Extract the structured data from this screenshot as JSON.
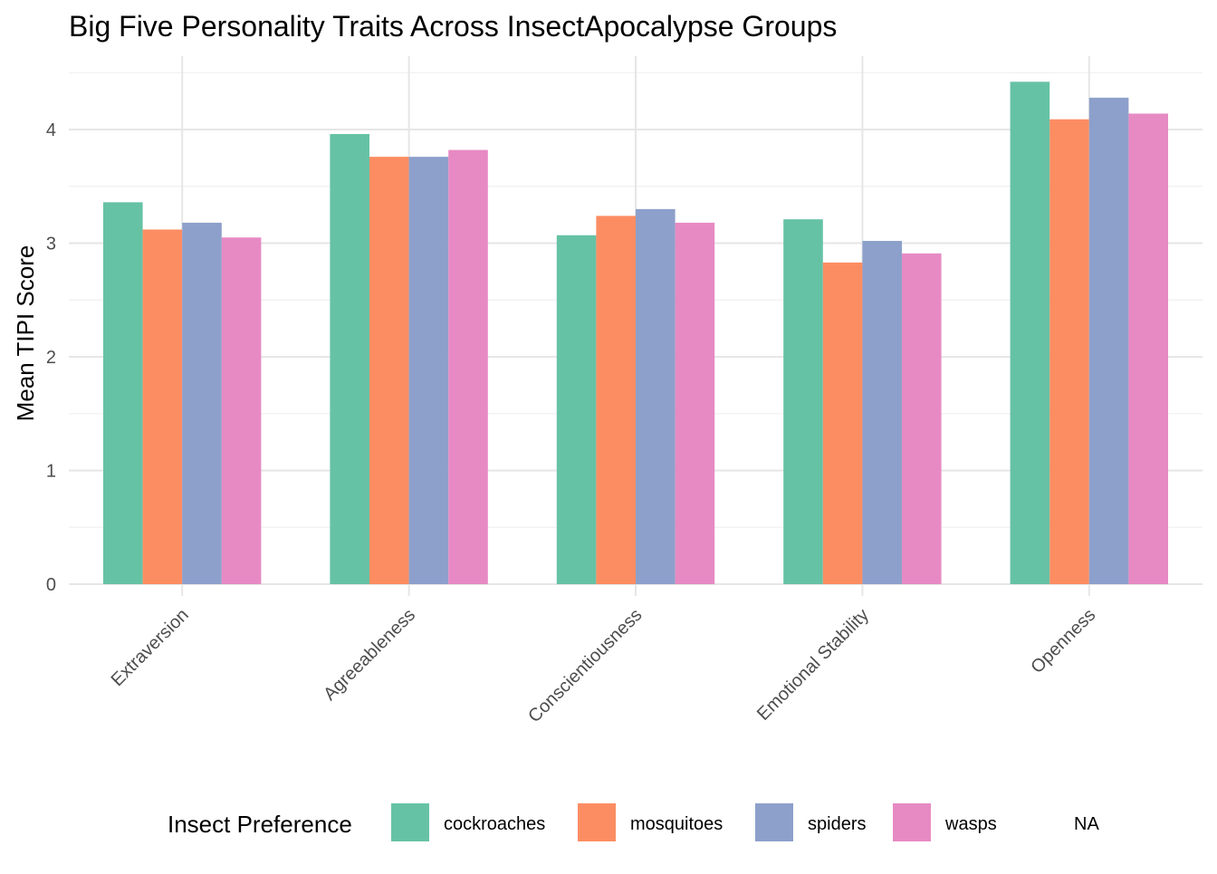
{
  "chart_data": {
    "type": "bar",
    "title": "Big Five Personality Traits Across InsectApocalypse Groups",
    "xlabel": "",
    "ylabel": "Mean TIPI Score",
    "ylim": [
      0,
      4.65
    ],
    "yticks": [
      0,
      1,
      2,
      3,
      4
    ],
    "grid": true,
    "legend_position": "bottom",
    "legend_title": "Insect Preference",
    "categories": [
      "Extraversion",
      "Agreeableness",
      "Conscientiousness",
      "Emotional Stability",
      "Openness"
    ],
    "series": [
      {
        "name": "cockroaches",
        "color": "#66c2a5",
        "values": [
          3.36,
          3.96,
          3.07,
          3.21,
          4.42
        ]
      },
      {
        "name": "mosquitoes",
        "color": "#fc8d62",
        "values": [
          3.12,
          3.76,
          3.24,
          2.83,
          4.09
        ]
      },
      {
        "name": "spiders",
        "color": "#8da0cb",
        "values": [
          3.18,
          3.76,
          3.3,
          3.02,
          4.28
        ]
      },
      {
        "name": "wasps",
        "color": "#e78ac3",
        "values": [
          3.05,
          3.82,
          3.18,
          2.91,
          4.14
        ]
      }
    ],
    "legend_extra_label": "NA"
  }
}
